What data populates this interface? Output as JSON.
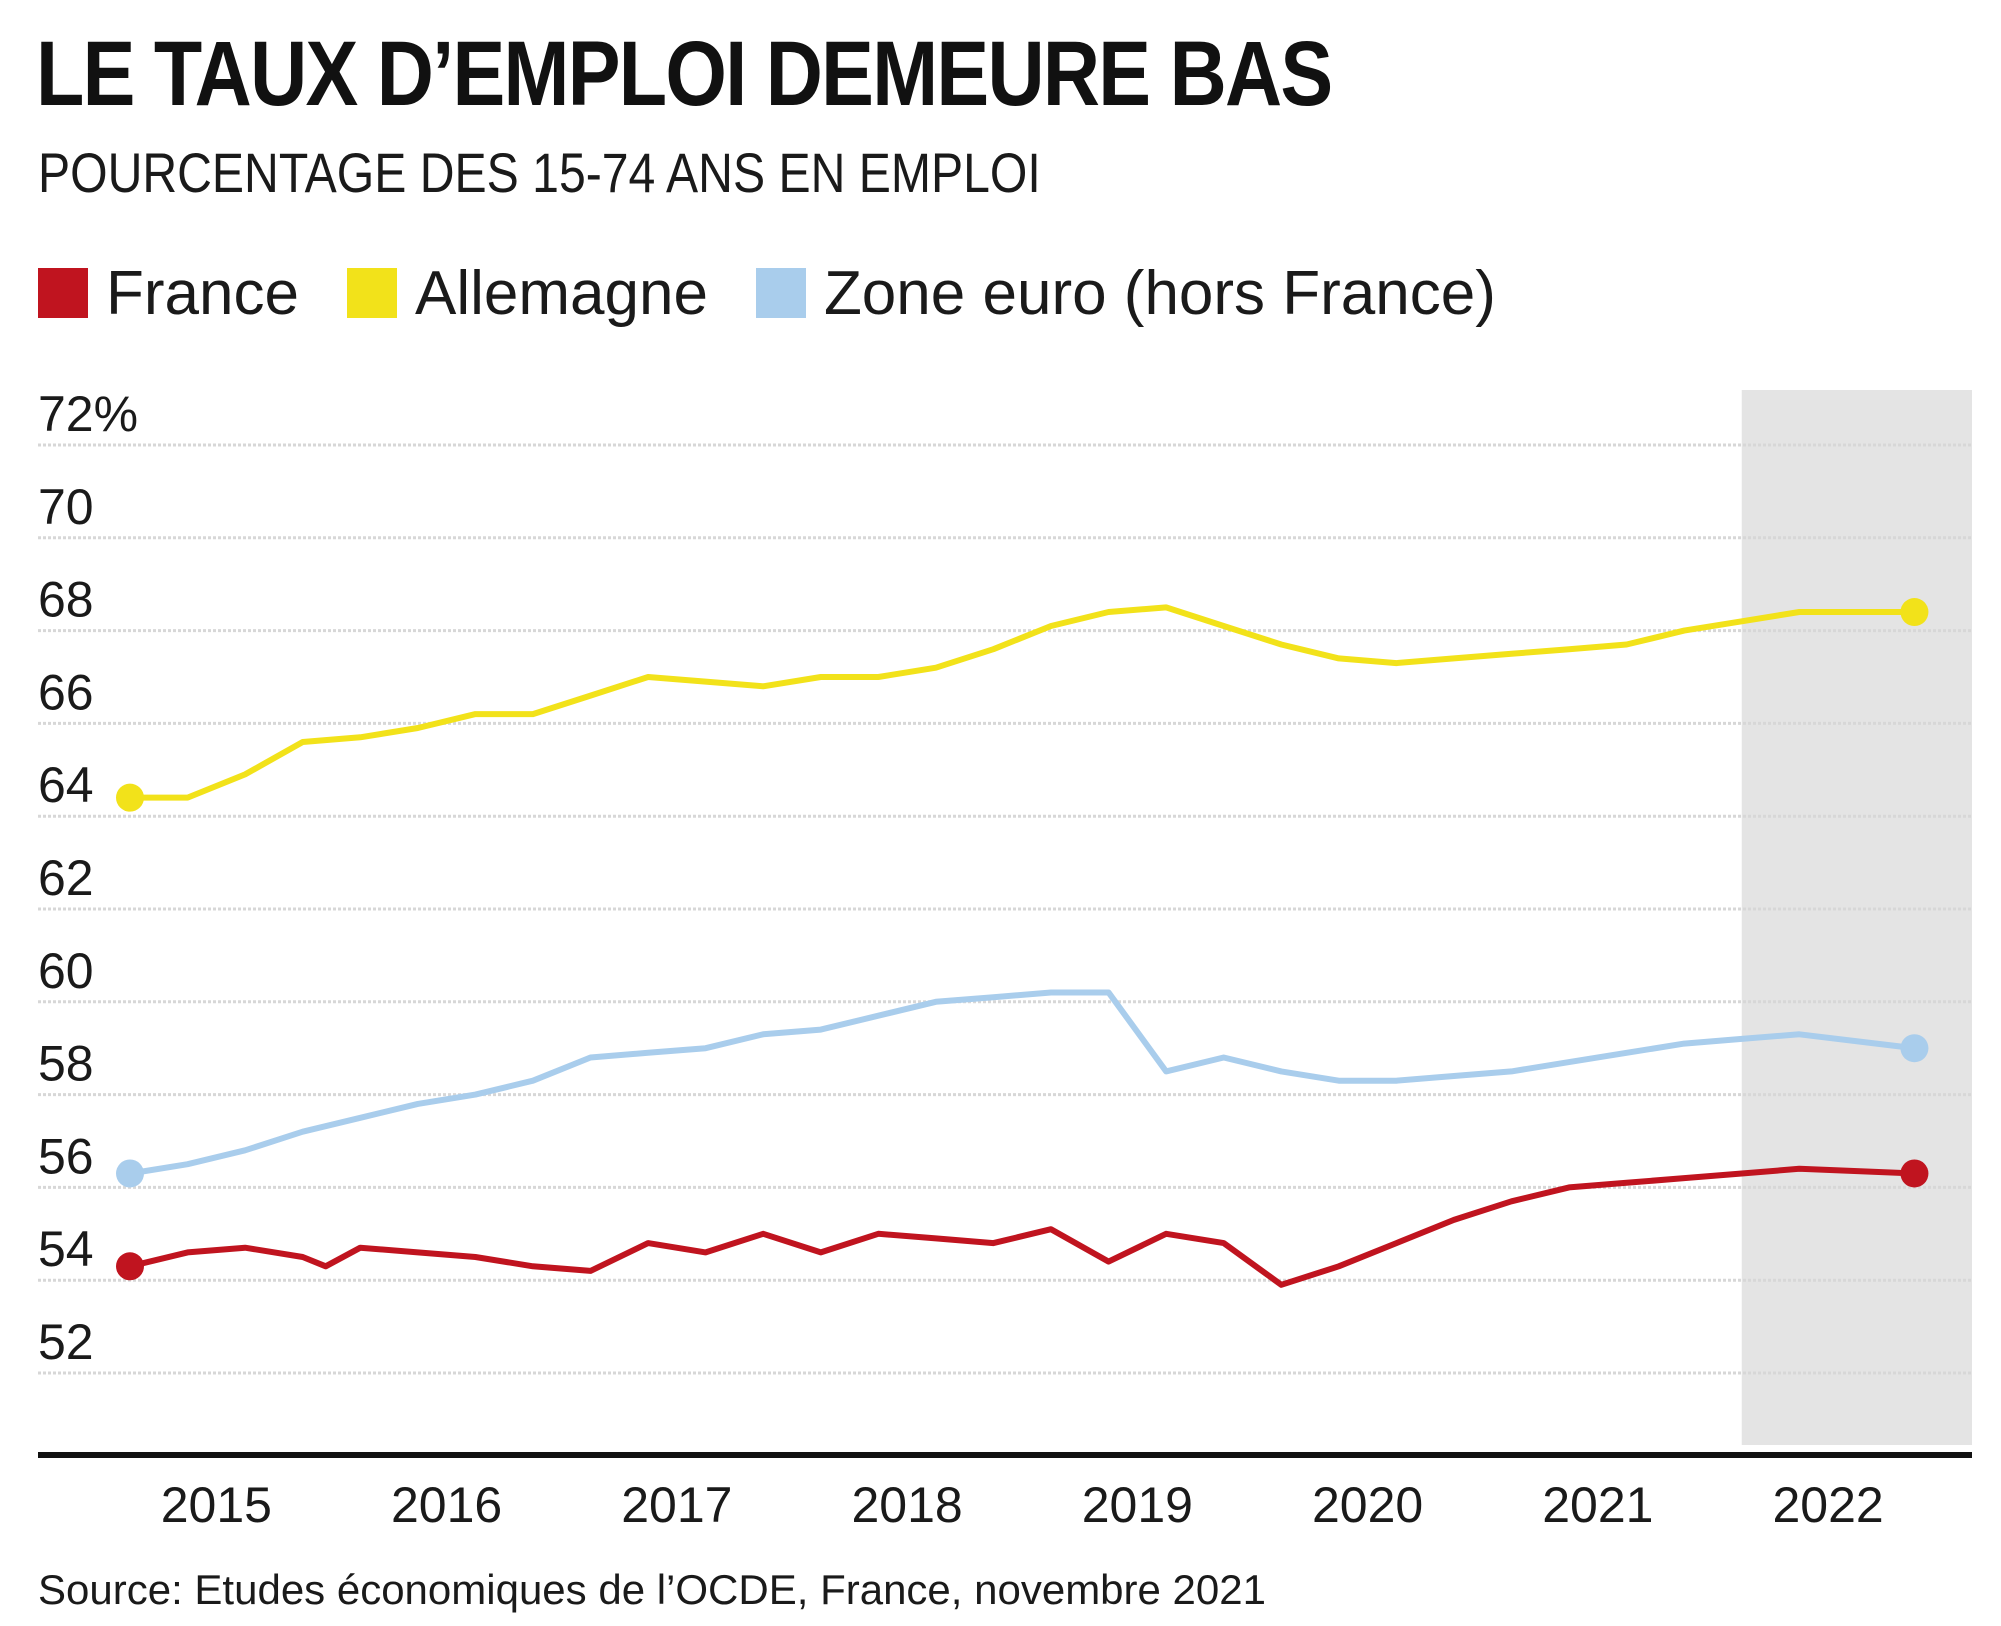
{
  "title": "LE TAUX D’EMPLOI DEMEURE BAS",
  "subtitle": "POURCENTAGE DES 15-74 ANS EN EMPLOI",
  "source": "Source: Etudes économiques de l’OCDE, France, novembre 2021",
  "legend": [
    {
      "label": "France",
      "color": "#c0141f"
    },
    {
      "label": "Allemagne",
      "color": "#f2e21a"
    },
    {
      "label": "Zone euro (hors France)",
      "color": "#a9cdec"
    }
  ],
  "colors": {
    "forecast_shade": "#e4e4e4",
    "grid": "#d7d7d7",
    "axis": "#111111"
  },
  "chart_data": {
    "type": "line",
    "title": "LE TAUX D’EMPLOI DEMEURE BAS",
    "subtitle": "POURCENTAGE DES 15-74 ANS EN EMPLOI",
    "xlabel": "",
    "ylabel": "",
    "ylim": [
      52,
      72
    ],
    "xlim": [
      2014.75,
      2022.75
    ],
    "y_ticks": [
      {
        "value": 72,
        "label": "72%"
      },
      {
        "value": 70,
        "label": "70"
      },
      {
        "value": 68,
        "label": "68"
      },
      {
        "value": 66,
        "label": "66"
      },
      {
        "value": 64,
        "label": "64"
      },
      {
        "value": 62,
        "label": "62"
      },
      {
        "value": 60,
        "label": "60"
      },
      {
        "value": 58,
        "label": "58"
      },
      {
        "value": 56,
        "label": "56"
      },
      {
        "value": 54,
        "label": "54"
      },
      {
        "value": 52,
        "label": "52"
      }
    ],
    "x_ticks": [
      {
        "value": 2015.125,
        "label": "2015"
      },
      {
        "value": 2016.125,
        "label": "2016"
      },
      {
        "value": 2017.125,
        "label": "2017"
      },
      {
        "value": 2018.125,
        "label": "2018"
      },
      {
        "value": 2019.125,
        "label": "2019"
      },
      {
        "value": 2020.125,
        "label": "2020"
      },
      {
        "value": 2021.125,
        "label": "2021"
      },
      {
        "value": 2022.125,
        "label": "2022"
      }
    ],
    "grid": true,
    "legend_position": "top-left",
    "forecast_range": [
      2021.75,
      2022.75
    ],
    "series": [
      {
        "name": "Allemagne",
        "color": "#f2e21a",
        "endpoint_markers": true,
        "points": [
          [
            2014.75,
            64.4
          ],
          [
            2015.0,
            64.4
          ],
          [
            2015.25,
            64.9
          ],
          [
            2015.5,
            65.6
          ],
          [
            2015.75,
            65.7
          ],
          [
            2016.0,
            65.9
          ],
          [
            2016.25,
            66.2
          ],
          [
            2016.5,
            66.2
          ],
          [
            2016.75,
            66.6
          ],
          [
            2017.0,
            67.0
          ],
          [
            2017.25,
            66.9
          ],
          [
            2017.5,
            66.8
          ],
          [
            2017.75,
            67.0
          ],
          [
            2018.0,
            67.0
          ],
          [
            2018.25,
            67.2
          ],
          [
            2018.5,
            67.6
          ],
          [
            2018.75,
            68.1
          ],
          [
            2019.0,
            68.4
          ],
          [
            2019.25,
            68.5
          ],
          [
            2019.5,
            68.1
          ],
          [
            2019.75,
            67.7
          ],
          [
            2020.0,
            67.4
          ],
          [
            2020.25,
            67.3
          ],
          [
            2020.5,
            67.4
          ],
          [
            2020.75,
            67.5
          ],
          [
            2021.0,
            67.6
          ],
          [
            2021.25,
            67.7
          ],
          [
            2021.5,
            68.0
          ],
          [
            2021.75,
            68.2
          ],
          [
            2022.0,
            68.4
          ],
          [
            2022.5,
            68.4
          ]
        ]
      },
      {
        "name": "Zone euro (hors France)",
        "color": "#a9cdec",
        "endpoint_markers": true,
        "points": [
          [
            2014.75,
            56.3
          ],
          [
            2015.0,
            56.5
          ],
          [
            2015.25,
            56.8
          ],
          [
            2015.5,
            57.2
          ],
          [
            2015.75,
            57.5
          ],
          [
            2016.0,
            57.8
          ],
          [
            2016.25,
            58.0
          ],
          [
            2016.5,
            58.3
          ],
          [
            2016.75,
            58.8
          ],
          [
            2017.0,
            58.9
          ],
          [
            2017.25,
            59.0
          ],
          [
            2017.5,
            59.3
          ],
          [
            2017.75,
            59.4
          ],
          [
            2018.0,
            59.7
          ],
          [
            2018.25,
            60.0
          ],
          [
            2018.5,
            60.1
          ],
          [
            2018.75,
            60.2
          ],
          [
            2019.0,
            60.2
          ],
          [
            2019.25,
            58.5
          ],
          [
            2019.5,
            58.8
          ],
          [
            2019.75,
            58.5
          ],
          [
            2020.0,
            58.3
          ],
          [
            2020.25,
            58.3
          ],
          [
            2020.5,
            58.4
          ],
          [
            2020.75,
            58.5
          ],
          [
            2021.0,
            58.7
          ],
          [
            2021.25,
            58.9
          ],
          [
            2021.5,
            59.1
          ],
          [
            2021.75,
            59.2
          ],
          [
            2022.0,
            59.3
          ],
          [
            2022.5,
            59.0
          ]
        ]
      },
      {
        "name": "France",
        "color": "#c0141f",
        "endpoint_markers": true,
        "points": [
          [
            2014.75,
            54.3
          ],
          [
            2015.0,
            54.6
          ],
          [
            2015.25,
            54.7
          ],
          [
            2015.5,
            54.5
          ],
          [
            2015.6,
            54.3
          ],
          [
            2015.75,
            54.7
          ],
          [
            2016.0,
            54.6
          ],
          [
            2016.25,
            54.5
          ],
          [
            2016.5,
            54.3
          ],
          [
            2016.75,
            54.2
          ],
          [
            2017.0,
            54.8
          ],
          [
            2017.25,
            54.6
          ],
          [
            2017.5,
            55.0
          ],
          [
            2017.75,
            54.6
          ],
          [
            2018.0,
            55.0
          ],
          [
            2018.25,
            54.9
          ],
          [
            2018.5,
            54.8
          ],
          [
            2018.75,
            55.1
          ],
          [
            2019.0,
            54.4
          ],
          [
            2019.25,
            55.0
          ],
          [
            2019.5,
            54.8
          ],
          [
            2019.75,
            53.9
          ],
          [
            2020.0,
            54.3
          ],
          [
            2020.25,
            54.8
          ],
          [
            2020.5,
            55.3
          ],
          [
            2020.75,
            55.7
          ],
          [
            2021.0,
            56.0
          ],
          [
            2021.25,
            56.1
          ],
          [
            2021.5,
            56.2
          ],
          [
            2021.75,
            56.3
          ],
          [
            2022.0,
            56.4
          ],
          [
            2022.5,
            56.3
          ]
        ]
      }
    ]
  }
}
